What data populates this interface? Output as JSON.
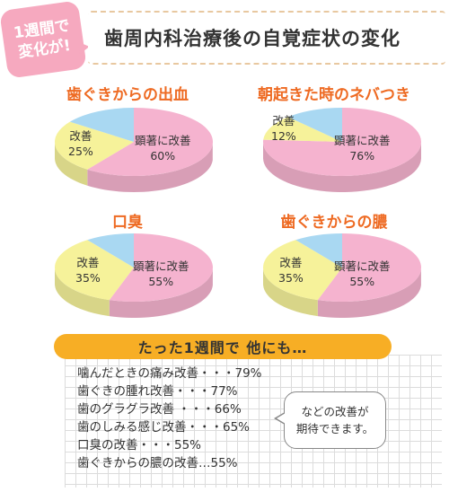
{
  "header": {
    "badge_line1": "1週間で",
    "badge_line2": "変化が!",
    "title": "歯周内科治療後の自覚症状の変化"
  },
  "chart_data": [
    {
      "type": "pie",
      "title": "歯ぐきからの出血",
      "slices": [
        {
          "label": "顕著に改善",
          "value": 60,
          "color": "#f5b3cf"
        },
        {
          "label": "改善",
          "value": 25,
          "color": "#f6f29a"
        },
        {
          "label": "",
          "value": 15,
          "color": "#a9d8f2"
        }
      ]
    },
    {
      "type": "pie",
      "title": "朝起きた時のネバつき",
      "slices": [
        {
          "label": "顕著に改善",
          "value": 76,
          "color": "#f5b3cf"
        },
        {
          "label": "改善",
          "value": 12,
          "color": "#f6f29a"
        },
        {
          "label": "",
          "value": 12,
          "color": "#a9d8f2"
        }
      ]
    },
    {
      "type": "pie",
      "title": "口臭",
      "slices": [
        {
          "label": "顕著に改善",
          "value": 55,
          "color": "#f5b3cf"
        },
        {
          "label": "改善",
          "value": 35,
          "color": "#f6f29a"
        },
        {
          "label": "",
          "value": 10,
          "color": "#a9d8f2"
        }
      ]
    },
    {
      "type": "pie",
      "title": "歯ぐきからの膿",
      "slices": [
        {
          "label": "顕著に改善",
          "value": 55,
          "color": "#f5b3cf"
        },
        {
          "label": "改善",
          "value": 35,
          "color": "#f6f29a"
        },
        {
          "label": "",
          "value": 10,
          "color": "#a9d8f2"
        }
      ]
    }
  ],
  "labels_pct": {
    "p1_main": "60%",
    "p1_sub": "25%",
    "p2_main": "76%",
    "p2_sub": "12%",
    "p3_main": "55%",
    "p3_sub": "35%",
    "p4_main": "55%",
    "p4_sub": "35%"
  },
  "other": {
    "banner": "たった1週間で 他にも…",
    "items": [
      "噛んだときの痛み改善・・・79%",
      "歯ぐきの腫れ改善・・・77%",
      "歯のグラグラ改善 ・・・66%",
      "歯のしみる感じ改善・・・65%",
      "口臭の改善・・・55%",
      "歯ぐきからの膿の改善…55%"
    ],
    "bubble_line1": "などの改善が",
    "bubble_line2": "期待できます。"
  },
  "colors": {
    "accent_orange": "#ee6a22",
    "banner_yellow": "#f7ae25",
    "badge_pink": "#f6a9bf"
  }
}
